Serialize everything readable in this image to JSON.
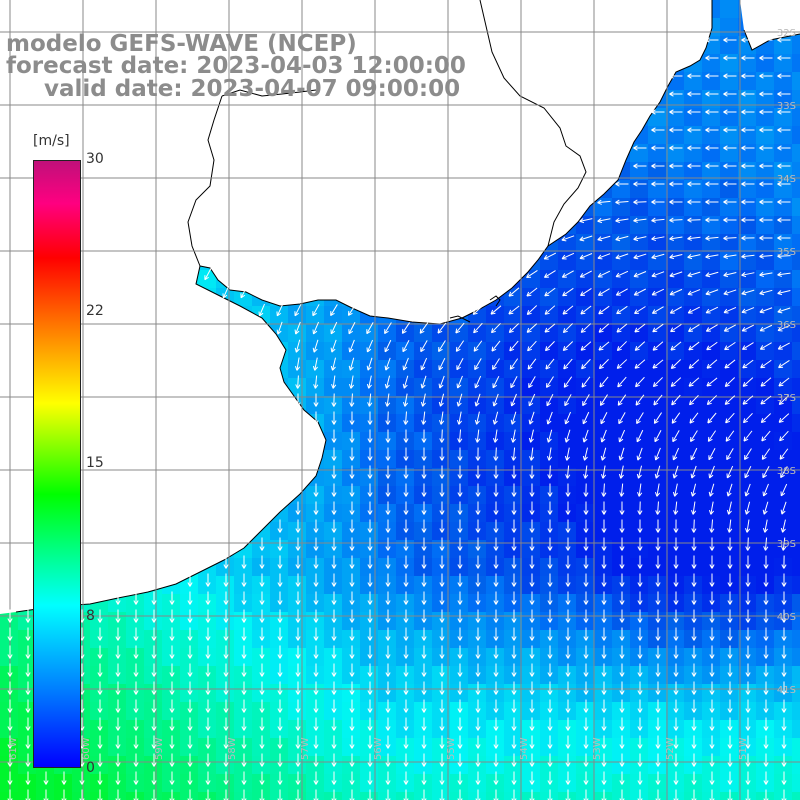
{
  "title": {
    "model": "modelo GEFS-WAVE (NCEP)",
    "forecast": "forecast date: 2023-04-03 12:00:00",
    "valid": "valid date: 2023-04-07 09:00:00"
  },
  "colorbar": {
    "unit": "[m/s]",
    "ticks": [
      "30",
      "22",
      "15",
      "8",
      "0"
    ],
    "range": [
      0,
      30
    ],
    "colors": [
      "#0000ff",
      "#0080ff",
      "#00ffff",
      "#00ff80",
      "#00ff00",
      "#ffff00",
      "#ff8000",
      "#ff0000",
      "#ff0080",
      "#c0107a"
    ]
  },
  "map": {
    "land_color": "#ffffff",
    "grid_color": "#888888",
    "coastline_color": "#000000",
    "arrow_color": "#ffffff",
    "lon_labels": [
      "61W",
      "60W",
      "59W",
      "58W",
      "57W",
      "56W",
      "55W",
      "54W",
      "53W",
      "52W",
      "51W"
    ],
    "lat_labels": [
      "32S",
      "33S",
      "34S",
      "35S",
      "36S",
      "37S",
      "38S",
      "39S",
      "40S",
      "41S"
    ]
  }
}
